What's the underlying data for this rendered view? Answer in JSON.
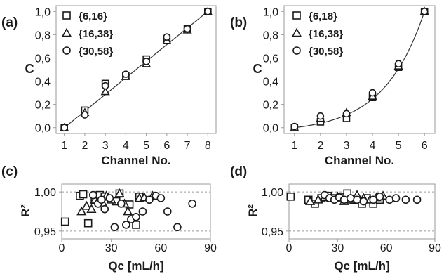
{
  "figure": {
    "colors": {
      "ink": "#1a1a1a",
      "frame": "#9a9a9a",
      "grid": "#9a9a9a",
      "fit": "#333333",
      "marker_fill": "#ffffff",
      "background": "#ffffff"
    }
  },
  "chart_data": [
    {
      "panel_label": "(a)",
      "type": "scatter",
      "xlabel": "Channel No.",
      "ylabel": "C",
      "xlim": [
        0.6,
        8.4
      ],
      "ylim": [
        -0.05,
        1.05
      ],
      "xticks": [
        "1",
        "2",
        "3",
        "4",
        "5",
        "6",
        "7",
        "8"
      ],
      "yticks": [
        "0,0",
        "0,2",
        "0,4",
        "0,6",
        "0,8",
        "1,0"
      ],
      "legend_position": "top-left",
      "fit": "linear",
      "series": [
        {
          "name": "{6,16}",
          "marker": "square",
          "x": [
            1,
            2,
            3,
            4,
            5,
            6,
            7,
            8
          ],
          "y": [
            0.0,
            0.15,
            0.38,
            0.45,
            0.59,
            0.76,
            0.85,
            1.0
          ]
        },
        {
          "name": "{16,38}",
          "marker": "triangle",
          "x": [
            1,
            2,
            3,
            4,
            5,
            6,
            7,
            8
          ],
          "y": [
            0.0,
            0.13,
            0.31,
            0.44,
            0.55,
            0.75,
            0.84,
            1.0
          ]
        },
        {
          "name": "{30,58}",
          "marker": "circle",
          "x": [
            1,
            2,
            3,
            4,
            5,
            6,
            7,
            8
          ],
          "y": [
            0.0,
            0.11,
            0.36,
            0.46,
            0.57,
            0.78,
            0.85,
            1.0
          ]
        }
      ]
    },
    {
      "panel_label": "(b)",
      "type": "scatter",
      "xlabel": "Channel No.",
      "ylabel": "C",
      "xlim": [
        0.6,
        6.4
      ],
      "ylim": [
        -0.05,
        1.05
      ],
      "xticks": [
        "1",
        "2",
        "3",
        "4",
        "5",
        "6"
      ],
      "yticks": [
        "0,0",
        "0,2",
        "0,4",
        "0,6",
        "0,8",
        "1,0"
      ],
      "legend_position": "top-left",
      "fit": "exponential",
      "series": [
        {
          "name": "{6,18}",
          "marker": "square",
          "x": [
            1,
            2,
            3,
            4,
            5,
            6
          ],
          "y": [
            0.0,
            0.05,
            0.08,
            0.26,
            0.52,
            1.0
          ]
        },
        {
          "name": "{16,38}",
          "marker": "triangle",
          "x": [
            1,
            2,
            3,
            4,
            5,
            6
          ],
          "y": [
            0.0,
            0.08,
            0.13,
            0.27,
            0.53,
            1.0
          ]
        },
        {
          "name": "{30,58}",
          "marker": "circle",
          "x": [
            1,
            2,
            3,
            4,
            5,
            6
          ],
          "y": [
            0.01,
            0.1,
            0.12,
            0.3,
            0.55,
            1.0
          ]
        }
      ]
    },
    {
      "panel_label": "(c)",
      "type": "scatter",
      "xlabel": "Qc [mL/h]",
      "ylabel": "R²",
      "xlim": [
        0,
        90
      ],
      "ylim": [
        0.94,
        1.01
      ],
      "xticks": [
        "0",
        "30",
        "60",
        "90"
      ],
      "yticks": [
        "0,95",
        "1,00"
      ],
      "reference_lines": [
        1.0,
        0.95
      ],
      "series": [
        {
          "name": "{6,16}",
          "marker": "square",
          "x": [
            2,
            11,
            13,
            16,
            20,
            23,
            26,
            33,
            35,
            41,
            45,
            47
          ],
          "y": [
            0.962,
            0.995,
            0.997,
            0.96,
            0.99,
            0.996,
            0.994,
            0.988,
            0.998,
            0.984,
            0.958,
            0.994
          ]
        },
        {
          "name": "{16,38}",
          "marker": "triangle",
          "x": [
            12,
            15,
            18,
            20,
            25,
            27,
            30,
            35,
            38,
            40,
            47,
            50,
            55
          ],
          "y": [
            0.975,
            0.982,
            0.978,
            0.99,
            0.985,
            0.995,
            0.99,
            0.998,
            0.985,
            0.975,
            0.992,
            0.993,
            0.995
          ]
        },
        {
          "name": "{30,58}",
          "marker": "circle",
          "x": [
            19,
            22,
            24,
            26,
            29,
            32,
            36,
            39,
            42,
            45,
            49,
            53,
            57,
            60,
            64,
            70,
            79
          ],
          "y": [
            0.996,
            0.985,
            0.99,
            0.978,
            0.992,
            0.955,
            0.985,
            0.958,
            0.965,
            0.968,
            0.975,
            0.99,
            0.995,
            0.992,
            0.975,
            0.955,
            0.985
          ]
        }
      ]
    },
    {
      "panel_label": "(d)",
      "type": "scatter",
      "xlabel": "Qc [mL/h]",
      "ylabel": "R²",
      "xlim": [
        0,
        90
      ],
      "ylim": [
        0.94,
        1.01
      ],
      "xticks": [
        "0",
        "30",
        "60",
        "90"
      ],
      "yticks": [
        "0,95",
        "1,00"
      ],
      "reference_lines": [
        1.0,
        0.95
      ],
      "series": [
        {
          "name": "{6,18}",
          "marker": "square",
          "x": [
            1,
            12,
            16,
            20,
            24,
            28,
            33,
            36,
            40,
            45,
            48,
            52,
            56
          ],
          "y": [
            0.994,
            0.99,
            0.985,
            0.992,
            0.995,
            0.992,
            0.993,
            0.998,
            0.99,
            0.985,
            0.992,
            0.985,
            0.99
          ]
        },
        {
          "name": "{16,38}",
          "marker": "triangle",
          "x": [
            13,
            18,
            22,
            26,
            30,
            34,
            38,
            42,
            46,
            50,
            54,
            58
          ],
          "y": [
            0.988,
            0.99,
            0.993,
            0.992,
            0.994,
            0.988,
            0.99,
            0.996,
            0.992,
            0.99,
            0.993,
            0.995
          ]
        },
        {
          "name": "{30,58}",
          "marker": "circle",
          "x": [
            22,
            25,
            28,
            31,
            34,
            38,
            42,
            46,
            52,
            56,
            62,
            66,
            72,
            79
          ],
          "y": [
            0.996,
            0.992,
            0.99,
            0.993,
            0.99,
            0.992,
            0.99,
            0.988,
            0.99,
            0.994,
            0.99,
            0.992,
            0.99,
            0.99
          ]
        }
      ]
    }
  ]
}
